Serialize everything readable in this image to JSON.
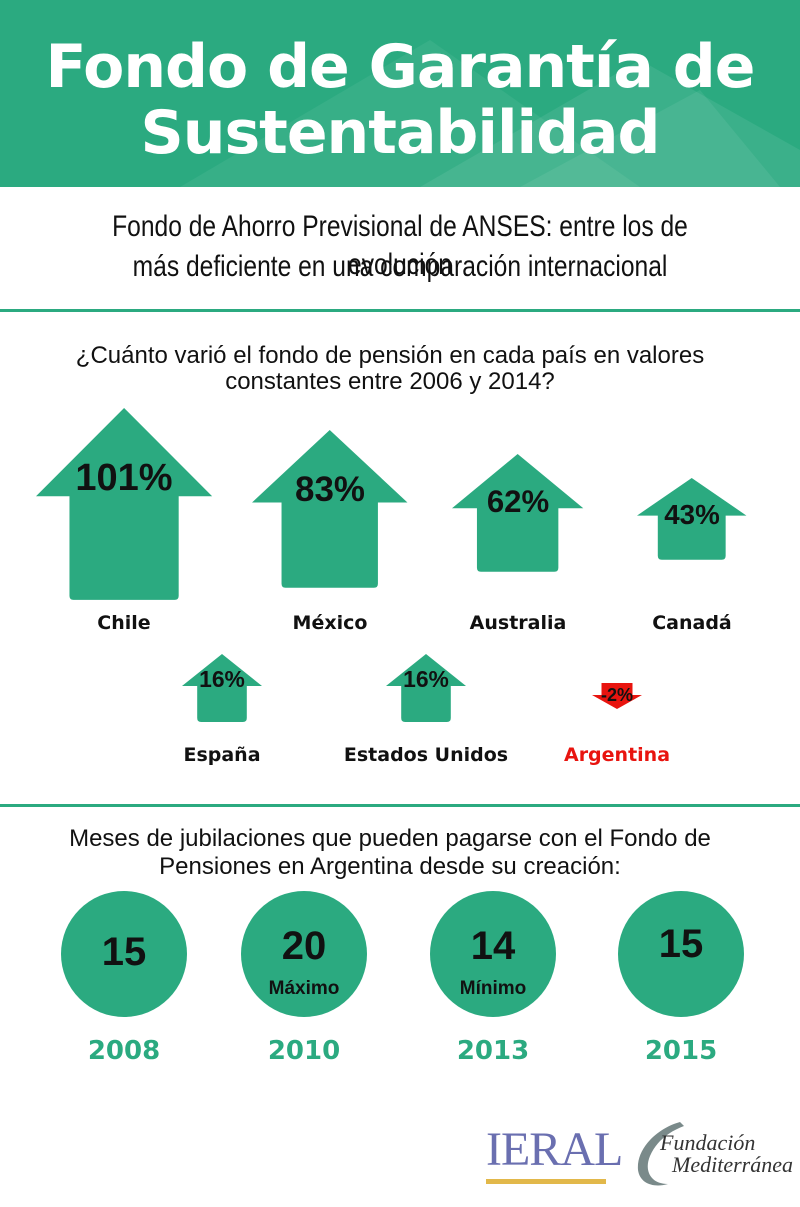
{
  "header": {
    "title_line1": "Fondo de Garantía de",
    "title_line2": "Sustentabilidad",
    "bg_color": "#2baa80"
  },
  "subtitle": {
    "line1": "Fondo de Ahorro Previsional de ANSES: entre los de evolución",
    "line2": "más deficiente en una comparación internacional"
  },
  "question": {
    "line1": "¿Cuánto varió el fondo de pensión en cada país en valores",
    "line2": "constantes entre 2006 y 2014?"
  },
  "chart_data": [
    {
      "type": "bar",
      "title": "¿Cuánto varió el fondo de pensión en cada país en valores constantes entre 2006 y 2014?",
      "categories": [
        "Chile",
        "México",
        "Australia",
        "Canadá",
        "España",
        "Estados Unidos",
        "Argentina"
      ],
      "values": [
        101,
        83,
        62,
        43,
        16,
        16,
        -2
      ],
      "value_labels": [
        "101%",
        "83%",
        "62%",
        "43%",
        "16%",
        "16%",
        "-2%"
      ],
      "unit": "%",
      "positive_color": "#2baa80",
      "negative_color": "#e8140f",
      "highlight_label_color": "#e8140f"
    },
    {
      "type": "table",
      "title": "Meses de jubilaciones que pueden pagarse con el Fondo de Pensiones en Argentina desde su creación:",
      "categories": [
        "2008",
        "2010",
        "2013",
        "2015"
      ],
      "values": [
        15,
        20,
        14,
        15
      ],
      "notes": [
        "",
        "Máximo",
        "Mínimo",
        ""
      ],
      "color": "#2baa80"
    }
  ],
  "months": {
    "line1": "Meses de jubilaciones que pueden pagarse con el Fondo de",
    "line2": "Pensiones en Argentina desde su creación:"
  },
  "logos": {
    "ieral": "IERAL",
    "fundacion_line1": "Fundación",
    "fundacion_line2": "Mediterránea"
  }
}
